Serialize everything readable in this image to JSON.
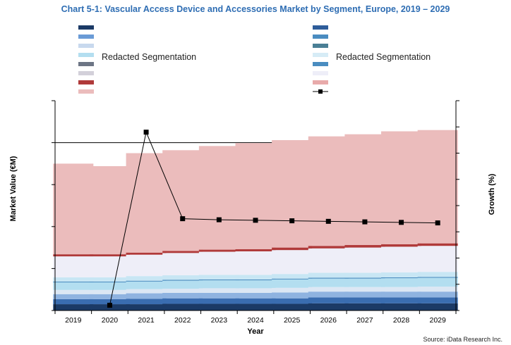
{
  "chart_data": {
    "type": "bar",
    "stacked": true,
    "title": "Chart 5-1: Vascular Access Device and Accessories Market by Segment, Europe, 2019 – 2029",
    "xlabel": "Year",
    "ylabel": "Market Value (€M)",
    "y2label": "Growth (%)",
    "source": "Source: iData Research Inc.",
    "legend_left_label": "Redacted Segmentation",
    "legend_right_label": "Redacted Segmentation",
    "grid": true,
    "ylim": [
      0,
      5
    ],
    "categories": [
      "2019",
      "2020",
      "2021",
      "2022",
      "2023",
      "2024",
      "2025",
      "2026",
      "2027",
      "2028",
      "2029"
    ],
    "series": [
      {
        "color": "#1b3a66",
        "values": [
          0.15,
          0.15,
          0.15,
          0.16,
          0.16,
          0.16,
          0.16,
          0.17,
          0.17,
          0.17,
          0.17
        ]
      },
      {
        "color": "#3a6db0",
        "values": [
          0.12,
          0.12,
          0.13,
          0.13,
          0.13,
          0.13,
          0.13,
          0.14,
          0.14,
          0.14,
          0.14
        ]
      },
      {
        "color": "#8fb3e0",
        "values": [
          0.12,
          0.12,
          0.13,
          0.13,
          0.13,
          0.13,
          0.14,
          0.14,
          0.14,
          0.14,
          0.14
        ]
      },
      {
        "color": "#dce7f4",
        "values": [
          0.1,
          0.1,
          0.1,
          0.1,
          0.11,
          0.11,
          0.11,
          0.11,
          0.11,
          0.11,
          0.12
        ]
      },
      {
        "color": "#b3def0",
        "values": [
          0.18,
          0.18,
          0.18,
          0.19,
          0.19,
          0.19,
          0.2,
          0.2,
          0.2,
          0.21,
          0.21
        ]
      },
      {
        "color": "#4a8cc0",
        "values": [
          0.02,
          0.02,
          0.02,
          0.02,
          0.02,
          0.02,
          0.02,
          0.02,
          0.02,
          0.02,
          0.02
        ]
      },
      {
        "color": "#c8e6f4",
        "values": [
          0.1,
          0.1,
          0.11,
          0.11,
          0.11,
          0.11,
          0.11,
          0.12,
          0.12,
          0.12,
          0.12
        ]
      },
      {
        "color": "#eeeef8",
        "values": [
          0.5,
          0.5,
          0.51,
          0.53,
          0.55,
          0.56,
          0.57,
          0.58,
          0.6,
          0.61,
          0.62
        ]
      },
      {
        "color": "#b03a3a",
        "values": [
          0.05,
          0.05,
          0.05,
          0.05,
          0.05,
          0.05,
          0.06,
          0.06,
          0.06,
          0.06,
          0.06
        ]
      },
      {
        "color": "#ebbcbc",
        "values": [
          2.16,
          2.1,
          2.37,
          2.4,
          2.47,
          2.53,
          2.56,
          2.61,
          2.64,
          2.69,
          2.7
        ]
      }
    ],
    "growth_line": {
      "marker": "square",
      "ylim": [
        -0.17,
        0.23
      ],
      "values": [
        null,
        -0.16,
        0.17,
        0.005,
        0.003,
        0.002,
        0.001,
        0.0,
        -0.001,
        -0.002,
        -0.003
      ]
    },
    "legend_left_colors": [
      "#1b3a66",
      "#6a9bd6",
      "#c8d9ee",
      "#b3def0",
      "#6d7585",
      "#d3d0da",
      "#b03a3a",
      "#ebbcbc"
    ],
    "legend_right_colors": [
      "#2e5d9a",
      "#4a8cc0",
      "#4a7f95",
      "#d6ecf6",
      "#4a8cc0",
      "#eeeef8",
      "#e8aaaa"
    ]
  }
}
